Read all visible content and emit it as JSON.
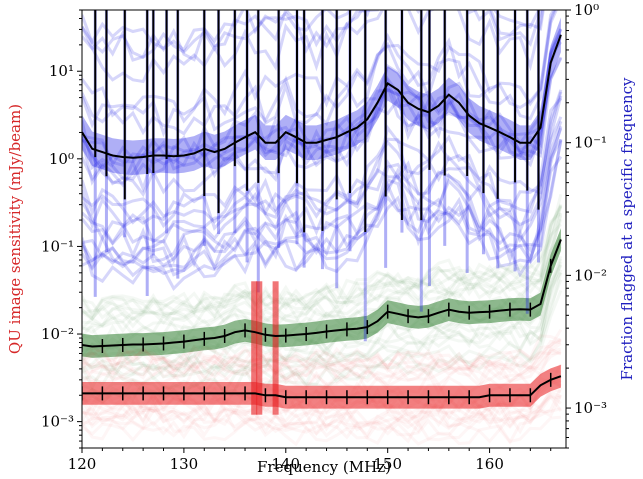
{
  "chart_data": {
    "type": "line",
    "xlabel": "Frequency (MHz)",
    "ylabel_left": "QU image sensitivity (mJy/beam)",
    "ylabel_right": "Fraction flagged at a specific frequency",
    "xlim": [
      120,
      167.5
    ],
    "ylim_left": [
      0.0005,
      50
    ],
    "ylim_right": [
      0.0005,
      1
    ],
    "yscale_left": "log",
    "yscale_right": "log",
    "x_ticks": [
      120,
      130,
      140,
      150,
      160
    ],
    "x_tick_labels": [
      "120",
      "130",
      "140",
      "150",
      "160"
    ],
    "y_left_ticks": [
      0.001,
      0.01,
      0.1,
      1,
      10
    ],
    "y_left_tick_labels": [
      "10⁻³",
      "10⁻²",
      "10⁻¹",
      "10⁰",
      "10¹"
    ],
    "y_right_ticks": [
      0.001,
      0.01,
      0.1,
      1
    ],
    "y_right_tick_labels": [
      "10⁻³",
      "10⁻²",
      "10⁻¹",
      "10⁰"
    ],
    "colors": {
      "red": "#e8191c",
      "green": "#2f7d2f",
      "blue": "#1a1ae6",
      "median": "#000000",
      "ylabel_left": "#d62728",
      "ylabel_right": "#1f1fbf"
    },
    "grid": false,
    "series": [
      {
        "color_key": "blue",
        "axis": "right",
        "x": [
          120,
          121,
          122,
          123,
          124,
          125,
          126,
          127,
          128,
          129,
          130,
          131,
          132,
          133,
          134,
          135,
          136,
          137,
          138,
          139,
          140,
          141,
          142,
          143,
          144,
          145,
          146,
          147,
          148,
          149,
          150,
          151,
          152,
          153,
          154,
          155,
          156,
          157,
          158,
          159,
          160,
          161,
          162,
          163,
          164,
          165,
          166,
          167
        ],
        "values": [
          0.12,
          0.09,
          0.085,
          0.08,
          0.078,
          0.077,
          0.078,
          0.08,
          0.08,
          0.079,
          0.08,
          0.083,
          0.09,
          0.085,
          0.09,
          0.1,
          0.11,
          0.12,
          0.1,
          0.1,
          0.12,
          0.11,
          0.1,
          0.1,
          0.105,
          0.11,
          0.12,
          0.13,
          0.15,
          0.2,
          0.28,
          0.25,
          0.2,
          0.18,
          0.17,
          0.19,
          0.23,
          0.2,
          0.16,
          0.14,
          0.13,
          0.12,
          0.11,
          0.1,
          0.1,
          0.13,
          0.4,
          0.65
        ]
      },
      {
        "color_key": "green",
        "axis": "left",
        "x": [
          120,
          121,
          122,
          123,
          124,
          125,
          126,
          127,
          128,
          129,
          130,
          131,
          132,
          133,
          134,
          135,
          136,
          137,
          138,
          139,
          140,
          141,
          142,
          143,
          144,
          145,
          146,
          147,
          148,
          149,
          150,
          151,
          152,
          153,
          154,
          155,
          156,
          157,
          158,
          159,
          160,
          161,
          162,
          163,
          164,
          165,
          166,
          167
        ],
        "values": [
          0.0075,
          0.0072,
          0.0073,
          0.0074,
          0.0075,
          0.0076,
          0.0076,
          0.0077,
          0.0078,
          0.008,
          0.0082,
          0.0085,
          0.0088,
          0.009,
          0.0095,
          0.0105,
          0.011,
          0.0105,
          0.0098,
          0.0095,
          0.0096,
          0.0098,
          0.01,
          0.0103,
          0.0107,
          0.011,
          0.0113,
          0.0115,
          0.012,
          0.014,
          0.018,
          0.017,
          0.016,
          0.0155,
          0.016,
          0.0175,
          0.019,
          0.018,
          0.0175,
          0.0178,
          0.018,
          0.0185,
          0.019,
          0.0192,
          0.019,
          0.022,
          0.06,
          0.12
        ]
      },
      {
        "color_key": "red",
        "axis": "left",
        "x": [
          120,
          121,
          122,
          123,
          124,
          125,
          126,
          127,
          128,
          129,
          130,
          131,
          132,
          133,
          134,
          135,
          136,
          137,
          138,
          139,
          140,
          141,
          142,
          143,
          144,
          145,
          146,
          147,
          148,
          149,
          150,
          151,
          152,
          153,
          154,
          155,
          156,
          157,
          158,
          159,
          160,
          161,
          162,
          163,
          164,
          165,
          166,
          167
        ],
        "values": [
          0.0021,
          0.0021,
          0.0021,
          0.0021,
          0.0021,
          0.0021,
          0.0021,
          0.0021,
          0.0021,
          0.0021,
          0.0021,
          0.0021,
          0.0021,
          0.0021,
          0.0021,
          0.0021,
          0.0021,
          0.0021,
          0.002,
          0.002,
          0.0019,
          0.0019,
          0.0019,
          0.0019,
          0.0019,
          0.0019,
          0.0019,
          0.0019,
          0.0019,
          0.0019,
          0.0019,
          0.0019,
          0.0019,
          0.0019,
          0.0019,
          0.0019,
          0.0019,
          0.0019,
          0.0019,
          0.0019,
          0.002,
          0.002,
          0.002,
          0.002,
          0.002,
          0.0026,
          0.003,
          0.0033
        ]
      }
    ],
    "spikes": [
      {
        "x": 121.3
      },
      {
        "x": 122.4
      },
      {
        "x": 124.2
      },
      {
        "x": 126.4
      },
      {
        "x": 127.0
      },
      {
        "x": 128.3
      },
      {
        "x": 129.4
      },
      {
        "x": 132.0
      },
      {
        "x": 133.4
      },
      {
        "x": 135.0
      },
      {
        "x": 136.2
      },
      {
        "x": 137.3
      },
      {
        "x": 139.3
      },
      {
        "x": 141.1
      },
      {
        "x": 141.8
      },
      {
        "x": 143.6
      },
      {
        "x": 145.0
      },
      {
        "x": 146.3
      },
      {
        "x": 147.8
      },
      {
        "x": 149.8
      },
      {
        "x": 151.4
      },
      {
        "x": 153.3
      },
      {
        "x": 154.1
      },
      {
        "x": 155.6
      },
      {
        "x": 157.8
      },
      {
        "x": 159.4
      },
      {
        "x": 160.8
      },
      {
        "x": 162.5
      },
      {
        "x": 163.7
      },
      {
        "x": 164.8
      }
    ]
  }
}
